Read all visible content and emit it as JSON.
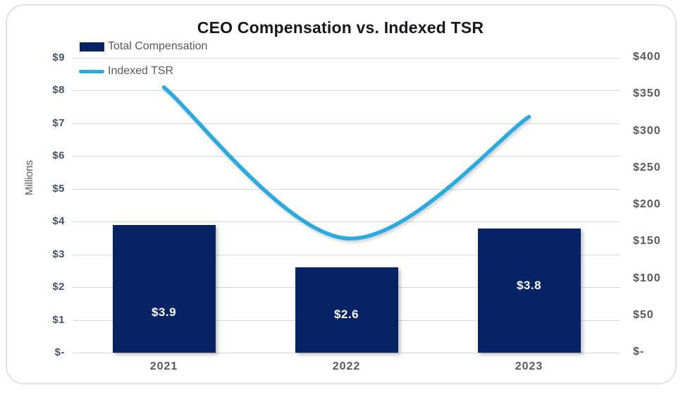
{
  "chart_data": {
    "type": "combo-bar-line",
    "title": "CEO Compensation vs. Indexed TSR",
    "categories": [
      "2021",
      "2022",
      "2023"
    ],
    "series": [
      {
        "name": "Total Compensation",
        "type": "bar",
        "axis": "left",
        "values": [
          3.9,
          2.6,
          3.8
        ],
        "data_labels": [
          "$3.9",
          "$2.6",
          "$3.8"
        ],
        "color": "#052365"
      },
      {
        "name": "Indexed TSR",
        "type": "line",
        "axis": "right",
        "values": [
          360,
          155,
          320
        ],
        "color": "#29abe2"
      }
    ],
    "left_axis": {
      "label": "Millions",
      "lim": [
        0,
        9
      ],
      "tick_labels": [
        "$9",
        "$8",
        "$7",
        "$6",
        "$5",
        "$4",
        "$3",
        "$2",
        "$1",
        "$-"
      ]
    },
    "right_axis": {
      "lim": [
        0,
        400
      ],
      "tick_labels": [
        "$400",
        "$350",
        "$300",
        "$250",
        "$200",
        "$150",
        "$100",
        "$50",
        "$-"
      ]
    },
    "grid": true,
    "legend_position": "top-left",
    "colors": {
      "bar": "#052365",
      "line": "#29abe2",
      "grid": "#d9d9d9",
      "left_tick_text": "#44546a",
      "right_tick_text": "#595959",
      "x_tick_text": "#595959",
      "legend_text": "#595959",
      "title_text": "#17181b",
      "bar_label_text": "#ffffff",
      "card_border": "#e0e1e4",
      "card_background": "#ffffff"
    }
  }
}
